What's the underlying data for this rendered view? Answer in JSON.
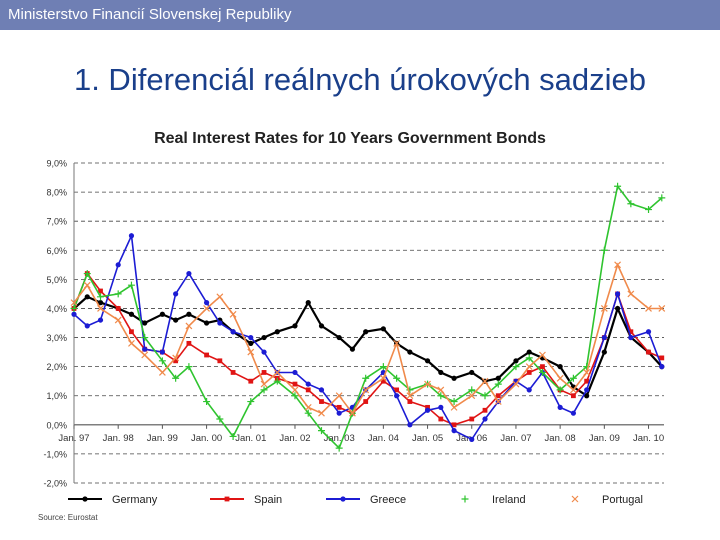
{
  "header": {
    "org": "Ministerstvo Financií Slovenskej Republiky"
  },
  "slide": {
    "title": "1. Diferenciál reálnych úrokových sadzieb"
  },
  "chart_data": {
    "type": "line",
    "title": "Real Interest Rates for 10 Years Government Bonds",
    "source": "Source: Eurostat",
    "xlabel": "",
    "ylabel": "",
    "x_range": [
      1997.0,
      2010.35
    ],
    "ylim": [
      -2.0,
      9.0
    ],
    "y_ticks": [
      9,
      8,
      7,
      6,
      5,
      4,
      3,
      2,
      1,
      0,
      -1,
      -2
    ],
    "y_tick_labels": [
      "9,0%",
      "8,0%",
      "7,0%",
      "6,0%",
      "5,0%",
      "4,0%",
      "3,0%",
      "2,0%",
      "1,0%",
      "0,0%",
      "-1,0%",
      "-2,0%"
    ],
    "x_ticks": [
      1997,
      1998,
      1999,
      2000,
      2001,
      2002,
      2003,
      2004,
      2005,
      2006,
      2007,
      2008,
      2009,
      2010
    ],
    "x_tick_labels": [
      "Jan. 97",
      "Jan. 98",
      "Jan. 99",
      "Jan. 00",
      "Jan. 01",
      "Jan. 02",
      "Jan. 03",
      "Jan. 04",
      "Jan. 05",
      "Jan. 06",
      "Jan. 07",
      "Jan. 08",
      "Jan. 09",
      "Jan. 10"
    ],
    "grid": "horizontal-dashed",
    "legend": "bottom",
    "series": [
      {
        "name": "Germany",
        "color": "#000000",
        "marker": "circle",
        "x": [
          1997.0,
          1997.3,
          1997.6,
          1998.0,
          1998.3,
          1998.6,
          1999.0,
          1999.3,
          1999.6,
          2000.0,
          2000.3,
          2000.6,
          2001.0,
          2001.3,
          2001.6,
          2002.0,
          2002.3,
          2002.6,
          2003.0,
          2003.3,
          2003.6,
          2004.0,
          2004.3,
          2004.6,
          2005.0,
          2005.3,
          2005.6,
          2006.0,
          2006.3,
          2006.6,
          2007.0,
          2007.3,
          2007.6,
          2008.0,
          2008.3,
          2008.6,
          2009.0,
          2009.3,
          2009.6,
          2010.0,
          2010.3
        ],
        "y": [
          4.0,
          4.4,
          4.2,
          4.0,
          3.8,
          3.5,
          3.8,
          3.6,
          3.8,
          3.5,
          3.6,
          3.2,
          2.8,
          3.0,
          3.2,
          3.4,
          4.2,
          3.4,
          3.0,
          2.6,
          3.2,
          3.3,
          2.8,
          2.5,
          2.2,
          1.8,
          1.6,
          1.8,
          1.5,
          1.6,
          2.2,
          2.5,
          2.3,
          2.0,
          1.3,
          1.0,
          2.5,
          4.0,
          3.0,
          2.5,
          2.0
        ]
      },
      {
        "name": "Spain",
        "color": "#e01414",
        "marker": "square",
        "x": [
          1997.0,
          1997.3,
          1997.6,
          1998.0,
          1998.3,
          1998.6,
          1999.0,
          1999.3,
          1999.6,
          2000.0,
          2000.3,
          2000.6,
          2001.0,
          2001.3,
          2001.6,
          2002.0,
          2002.3,
          2002.6,
          2003.0,
          2003.3,
          2003.6,
          2004.0,
          2004.3,
          2004.6,
          2005.0,
          2005.3,
          2005.6,
          2006.0,
          2006.3,
          2006.6,
          2007.0,
          2007.3,
          2007.6,
          2008.0,
          2008.3,
          2008.6,
          2009.0,
          2009.3,
          2009.6,
          2010.0,
          2010.3
        ],
        "y": [
          4.0,
          5.2,
          4.6,
          4.0,
          3.2,
          2.6,
          2.5,
          2.2,
          2.8,
          2.4,
          2.2,
          1.8,
          1.5,
          1.8,
          1.6,
          1.4,
          1.2,
          0.8,
          0.6,
          0.4,
          0.8,
          1.5,
          1.2,
          0.8,
          0.6,
          0.2,
          0.0,
          0.2,
          0.5,
          1.0,
          1.5,
          1.8,
          2.0,
          1.2,
          1.0,
          1.5,
          3.0,
          4.5,
          3.2,
          2.5,
          2.3
        ]
      },
      {
        "name": "Greece",
        "color": "#1c1cd4",
        "marker": "circle",
        "x": [
          1997.0,
          1997.3,
          1997.6,
          1998.0,
          1998.3,
          1998.6,
          1999.0,
          1999.3,
          1999.6,
          2000.0,
          2000.3,
          2000.6,
          2001.0,
          2001.3,
          2001.6,
          2002.0,
          2002.3,
          2002.6,
          2003.0,
          2003.3,
          2003.6,
          2004.0,
          2004.3,
          2004.6,
          2005.0,
          2005.3,
          2005.6,
          2006.0,
          2006.3,
          2006.6,
          2007.0,
          2007.3,
          2007.6,
          2008.0,
          2008.3,
          2008.6,
          2009.0,
          2009.3,
          2009.6,
          2010.0,
          2010.3
        ],
        "y": [
          3.8,
          3.4,
          3.6,
          5.5,
          6.5,
          2.6,
          2.5,
          4.5,
          5.2,
          4.2,
          3.5,
          3.2,
          3.0,
          2.5,
          1.8,
          1.8,
          1.4,
          1.2,
          0.4,
          0.6,
          1.2,
          1.8,
          1.0,
          0.0,
          0.5,
          0.6,
          -0.2,
          -0.5,
          0.2,
          0.8,
          1.5,
          1.2,
          1.8,
          0.6,
          0.4,
          1.2,
          3.0,
          4.5,
          3.0,
          3.2,
          2.0
        ]
      },
      {
        "name": "Ireland",
        "color": "#2fc42f",
        "marker": "plus",
        "x": [
          1997.0,
          1997.3,
          1997.6,
          1998.0,
          1998.3,
          1998.6,
          1999.0,
          1999.3,
          1999.6,
          2000.0,
          2000.3,
          2000.6,
          2001.0,
          2001.3,
          2001.6,
          2002.0,
          2002.3,
          2002.6,
          2003.0,
          2003.3,
          2003.6,
          2004.0,
          2004.3,
          2004.6,
          2005.0,
          2005.3,
          2005.6,
          2006.0,
          2006.3,
          2006.6,
          2007.0,
          2007.3,
          2007.6,
          2008.0,
          2008.3,
          2008.6,
          2009.0,
          2009.3,
          2009.6,
          2010.0,
          2010.3
        ],
        "y": [
          4.0,
          5.2,
          4.4,
          4.5,
          4.8,
          3.0,
          2.2,
          1.6,
          2.0,
          0.8,
          0.2,
          -0.4,
          0.8,
          1.2,
          1.5,
          1.0,
          0.4,
          -0.2,
          -0.8,
          0.4,
          1.6,
          2.0,
          1.6,
          1.2,
          1.4,
          1.0,
          0.8,
          1.2,
          1.0,
          1.4,
          2.0,
          2.3,
          1.8,
          1.2,
          1.6,
          2.0,
          6.0,
          8.2,
          7.6,
          7.4,
          7.8
        ]
      },
      {
        "name": "Portugal",
        "color": "#f08a4b",
        "marker": "x",
        "x": [
          1997.0,
          1997.3,
          1997.6,
          1998.0,
          1998.3,
          1998.6,
          1999.0,
          1999.3,
          1999.6,
          2000.0,
          2000.3,
          2000.6,
          2001.0,
          2001.3,
          2001.6,
          2002.0,
          2002.3,
          2002.6,
          2003.0,
          2003.3,
          2003.6,
          2004.0,
          2004.3,
          2004.6,
          2005.0,
          2005.3,
          2005.6,
          2006.0,
          2006.3,
          2006.6,
          2007.0,
          2007.3,
          2007.6,
          2008.0,
          2008.3,
          2008.6,
          2009.0,
          2009.3,
          2009.6,
          2010.0,
          2010.3
        ],
        "y": [
          4.2,
          4.8,
          4.0,
          3.6,
          2.8,
          2.4,
          1.8,
          2.3,
          3.4,
          4.0,
          4.4,
          3.8,
          2.5,
          1.4,
          1.8,
          1.2,
          0.6,
          0.4,
          1.0,
          0.4,
          1.2,
          1.6,
          2.8,
          1.0,
          1.4,
          1.2,
          0.6,
          1.0,
          1.5,
          0.8,
          1.4,
          2.0,
          2.4,
          1.6,
          1.2,
          1.8,
          4.0,
          5.5,
          4.5,
          4.0,
          4.0
        ]
      }
    ]
  }
}
